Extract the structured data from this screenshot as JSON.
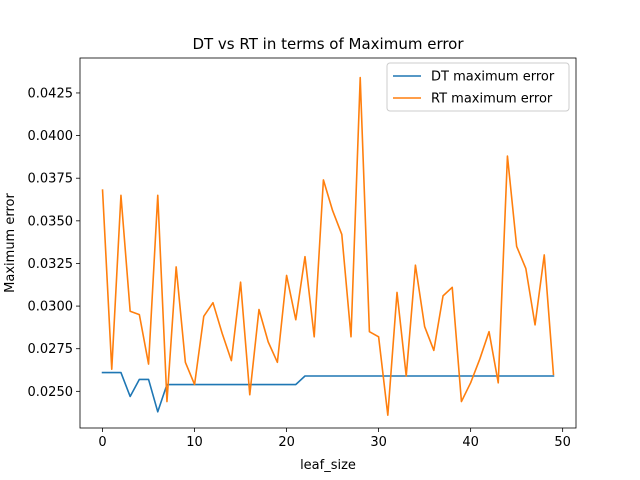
{
  "chart_data": {
    "type": "line",
    "title": "DT vs RT in terms of Maximum error",
    "xlabel": "leaf_size",
    "ylabel": "Maximum error",
    "xlim": [
      -2.45,
      51.45
    ],
    "ylim": [
      0.02285,
      0.04455
    ],
    "xticks": [
      0,
      10,
      20,
      30,
      40,
      50
    ],
    "xtick_labels": [
      "0",
      "10",
      "20",
      "30",
      "40",
      "50"
    ],
    "yticks": [
      0.025,
      0.0275,
      0.03,
      0.0325,
      0.035,
      0.0375,
      0.04,
      0.0425
    ],
    "ytick_labels": [
      "0.0250",
      "0.0275",
      "0.0300",
      "0.0325",
      "0.0350",
      "0.0375",
      "0.0400",
      "0.0425"
    ],
    "grid": false,
    "legend_position": "top-right",
    "x": [
      0,
      1,
      2,
      3,
      4,
      5,
      6,
      7,
      8,
      9,
      10,
      11,
      12,
      13,
      14,
      15,
      16,
      17,
      18,
      19,
      20,
      21,
      22,
      23,
      24,
      25,
      26,
      27,
      28,
      29,
      30,
      31,
      32,
      33,
      34,
      35,
      36,
      37,
      38,
      39,
      40,
      41,
      42,
      43,
      44,
      45,
      46,
      47,
      48,
      49
    ],
    "series": [
      {
        "name": "DT maximum error",
        "color": "#1f77b4",
        "values": [
          0.0261,
          0.0261,
          0.0261,
          0.0247,
          0.0257,
          0.0257,
          0.0238,
          0.0254,
          0.0254,
          0.0254,
          0.0254,
          0.0254,
          0.0254,
          0.0254,
          0.0254,
          0.0254,
          0.0254,
          0.0254,
          0.0254,
          0.0254,
          0.0254,
          0.0254,
          0.0259,
          0.0259,
          0.0259,
          0.0259,
          0.0259,
          0.0259,
          0.0259,
          0.0259,
          0.0259,
          0.0259,
          0.0259,
          0.0259,
          0.0259,
          0.0259,
          0.0259,
          0.0259,
          0.0259,
          0.0259,
          0.0259,
          0.0259,
          0.0259,
          0.0259,
          0.0259,
          0.0259,
          0.0259,
          0.0259,
          0.0259,
          0.0259
        ]
      },
      {
        "name": "RT maximum error",
        "color": "#ff7f0e",
        "values": [
          0.0368,
          0.0263,
          0.0365,
          0.0297,
          0.0295,
          0.0266,
          0.0365,
          0.0244,
          0.0323,
          0.0267,
          0.0254,
          0.0294,
          0.0302,
          0.0284,
          0.0268,
          0.0314,
          0.0248,
          0.0298,
          0.0279,
          0.0267,
          0.0318,
          0.0292,
          0.0329,
          0.0282,
          0.0374,
          0.0356,
          0.0342,
          0.0282,
          0.0434,
          0.0285,
          0.0282,
          0.0236,
          0.0308,
          0.0259,
          0.0324,
          0.0288,
          0.0274,
          0.0306,
          0.0311,
          0.0244,
          0.0255,
          0.0269,
          0.0285,
          0.0255,
          0.0388,
          0.0335,
          0.0322,
          0.0289,
          0.033,
          0.026
        ]
      }
    ]
  }
}
